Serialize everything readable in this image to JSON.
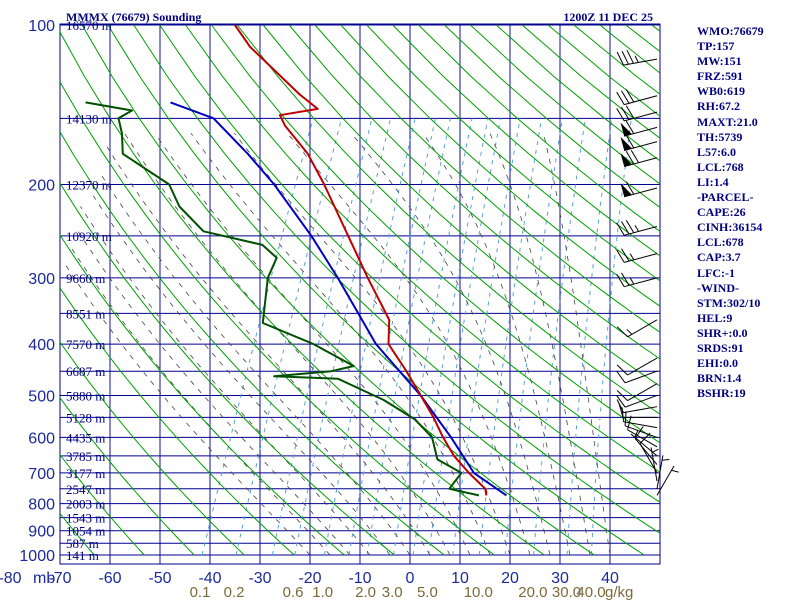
{
  "chart_data": {
    "type": "skew-t sounding",
    "title": "MMMX (76679) Sounding",
    "datetime": "1200Z 11 DEC 25",
    "pressure_axis_label": "mb",
    "pressure_ticks": [
      100,
      200,
      300,
      400,
      500,
      600,
      700,
      800,
      900,
      1000
    ],
    "temperature_ticks": [
      -80,
      -70,
      -60,
      -50,
      -40,
      -30,
      -20,
      -10,
      0,
      10,
      20,
      30,
      40
    ],
    "mixing_ratio_ticks": [
      "0.1",
      "0.2",
      "0.6",
      "1.0",
      "2.0",
      "3.0",
      "5.0",
      "10.0",
      "20.0",
      "30.0",
      "40.0"
    ],
    "mixing_ratio_unit": "g/kg",
    "height_labels": [
      {
        "p": 100,
        "text": "16570 m"
      },
      {
        "p": 150,
        "text": "14130 m"
      },
      {
        "p": 200,
        "text": "12370 m"
      },
      {
        "p": 250,
        "text": "10920 m"
      },
      {
        "p": 300,
        "text": "9660 m"
      },
      {
        "p": 350,
        "text": "8551 m"
      },
      {
        "p": 400,
        "text": "7570 m"
      },
      {
        "p": 450,
        "text": "6687 m"
      },
      {
        "p": 500,
        "text": "5880 m"
      },
      {
        "p": 550,
        "text": "5128 m"
      },
      {
        "p": 600,
        "text": "4435 m"
      },
      {
        "p": 650,
        "text": "3785 m"
      },
      {
        "p": 700,
        "text": "3177 m"
      },
      {
        "p": 750,
        "text": "2547 m"
      },
      {
        "p": 800,
        "text": "2003 m"
      },
      {
        "p": 850,
        "text": "1543 m"
      },
      {
        "p": 900,
        "text": "1054 m"
      },
      {
        "p": 950,
        "text": "587 m"
      },
      {
        "p": 1000,
        "text": "141 m"
      }
    ],
    "temperature_profile": [
      [
        772,
        10.0
      ],
      [
        750,
        9.2
      ],
      [
        700,
        4.5
      ],
      [
        650,
        0.0
      ],
      [
        600,
        -3.8
      ],
      [
        550,
        -7.5
      ],
      [
        500,
        -12.0
      ],
      [
        450,
        -17.0
      ],
      [
        400,
        -23.0
      ],
      [
        360,
        -25.0
      ],
      [
        300,
        -33.0
      ],
      [
        260,
        -39.0
      ],
      [
        200,
        -50.0
      ],
      [
        175,
        -56.0
      ],
      [
        155,
        -63.0
      ],
      [
        148,
        -65.0
      ],
      [
        144,
        -58.0
      ],
      [
        135,
        -63.0
      ],
      [
        110,
        -77.0
      ],
      [
        100,
        -82.0
      ]
    ],
    "dewpoint_profile": [
      [
        772,
        8.5
      ],
      [
        750,
        2.0
      ],
      [
        700,
        3.0
      ],
      [
        660,
        -3.0
      ],
      [
        600,
        -6.0
      ],
      [
        555,
        -11.0
      ],
      [
        510,
        -19.0
      ],
      [
        465,
        -30.0
      ],
      [
        460,
        -43.0
      ],
      [
        450,
        -32.0
      ],
      [
        440,
        -28.0
      ],
      [
        400,
        -38.0
      ],
      [
        365,
        -50.0
      ],
      [
        300,
        -53.0
      ],
      [
        275,
        -53.0
      ],
      [
        260,
        -57.0
      ],
      [
        245,
        -70.0
      ],
      [
        220,
        -77.0
      ],
      [
        200,
        -81.0
      ],
      [
        175,
        -93.0
      ],
      [
        160,
        -95.0
      ],
      [
        150,
        -97.0
      ],
      [
        145,
        -95.0
      ],
      [
        140,
        -105.0
      ]
    ],
    "parcel_profile": [
      [
        772,
        14.0
      ],
      [
        700,
        5.5
      ],
      [
        600,
        -2.2
      ],
      [
        500,
        -12.0
      ],
      [
        400,
        -25.5
      ],
      [
        300,
        -39.0
      ],
      [
        250,
        -48.0
      ],
      [
        200,
        -60.0
      ],
      [
        175,
        -68.0
      ],
      [
        150,
        -78.0
      ],
      [
        140,
        -88.0
      ]
    ],
    "wind_barbs": [
      {
        "p": 116,
        "dir": 260,
        "spd": 35
      },
      {
        "p": 136,
        "dir": 255,
        "spd": 30
      },
      {
        "p": 146,
        "dir": 255,
        "spd": 30
      },
      {
        "p": 156,
        "dir": 255,
        "spd": 60
      },
      {
        "p": 166,
        "dir": 255,
        "spd": 60
      },
      {
        "p": 178,
        "dir": 255,
        "spd": 70
      },
      {
        "p": 203,
        "dir": 255,
        "spd": 60
      },
      {
        "p": 240,
        "dir": 255,
        "spd": 35
      },
      {
        "p": 270,
        "dir": 255,
        "spd": 25
      },
      {
        "p": 300,
        "dir": 255,
        "spd": 25
      },
      {
        "p": 360,
        "dir": 240,
        "spd": 15
      },
      {
        "p": 425,
        "dir": 240,
        "spd": 10
      },
      {
        "p": 450,
        "dir": 250,
        "spd": 10
      },
      {
        "p": 475,
        "dir": 240,
        "spd": 10
      },
      {
        "p": 500,
        "dir": 250,
        "spd": 10
      },
      {
        "p": 525,
        "dir": 260,
        "spd": 10
      },
      {
        "p": 550,
        "dir": 270,
        "spd": 10
      },
      {
        "p": 575,
        "dir": 280,
        "spd": 10
      },
      {
        "p": 600,
        "dir": 290,
        "spd": 10
      },
      {
        "p": 625,
        "dir": 300,
        "spd": 10
      },
      {
        "p": 650,
        "dir": 310,
        "spd": 5
      },
      {
        "p": 675,
        "dir": 320,
        "spd": 10
      },
      {
        "p": 700,
        "dir": 330,
        "spd": 10
      },
      {
        "p": 725,
        "dir": 350,
        "spd": 5
      },
      {
        "p": 750,
        "dir": 10,
        "spd": 5
      },
      {
        "p": 772,
        "dir": 30,
        "spd": 5
      }
    ],
    "colors": {
      "temperature": "#c00000",
      "dewpoint": "#005000",
      "parcel": "#0000c0",
      "isobar": "#000090",
      "isotherm": "#1010a0",
      "dry_adiabat": "#00a000",
      "moist_adiabat": "#444444",
      "mixing_ratio": "#5aa0d8"
    }
  },
  "stats": [
    "WMO:76679",
    "TP:157",
    "MW:151",
    "FRZ:591",
    "WB0:619",
    "RH:67.2",
    "MAXT:21.0",
    "TH:5739",
    "L57:6.0",
    "LCL:768",
    "LI:1.4",
    "-PARCEL-",
    "CAPE:26",
    "CINH:36154",
    "LCL:678",
    "CAP:3.7",
    "LFC:-1",
    "-WIND-",
    "STM:302/10",
    "HEL:9",
    "SHR+:0.0",
    "SRDS:91",
    "EHI:0.0",
    "BRN:1.4",
    "BSHR:19"
  ]
}
